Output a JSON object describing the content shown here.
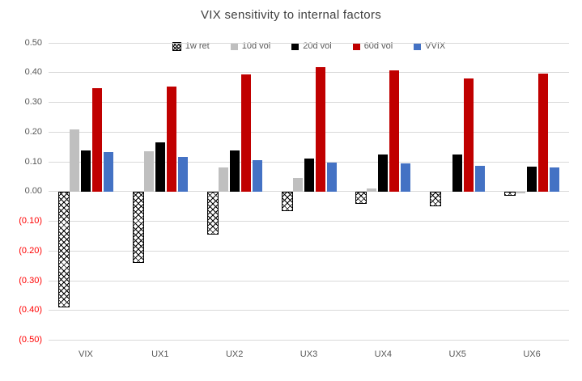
{
  "title": "VIX sensitivity to internal factors",
  "colors": {
    "grid": "#d9d9d9",
    "axis_text": "#595959",
    "negative_axis_text": "#ff0000",
    "title_text": "#404040",
    "series_1w_ret": "#000000",
    "series_10d_vol": "#bfbfbf",
    "series_20d_vol": "#000000",
    "series_60d_vol": "#c00000",
    "series_vvix": "#4472c4"
  },
  "chart_data": {
    "type": "bar",
    "title": "VIX sensitivity to internal factors",
    "xlabel": "",
    "ylabel": "",
    "categories": [
      "VIX",
      "UX1",
      "UX2",
      "UX3",
      "UX4",
      "UX5",
      "UX6"
    ],
    "series": [
      {
        "name": "1w ret",
        "style": "crosshatch",
        "color": "#000000",
        "values": [
          -0.385,
          -0.235,
          -0.14,
          -0.06,
          -0.035,
          -0.045,
          -0.01
        ]
      },
      {
        "name": "10d vol",
        "style": "solid",
        "color": "#bfbfbf",
        "values": [
          0.21,
          0.135,
          0.08,
          0.045,
          0.01,
          0.0,
          -0.005
        ]
      },
      {
        "name": "20d vol",
        "style": "solid",
        "color": "#000000",
        "values": [
          0.138,
          0.165,
          0.137,
          0.11,
          0.125,
          0.124,
          0.083
        ]
      },
      {
        "name": "60d vol",
        "style": "solid",
        "color": "#c00000",
        "values": [
          0.347,
          0.352,
          0.395,
          0.418,
          0.407,
          0.38,
          0.396
        ]
      },
      {
        "name": "VVIX",
        "style": "solid",
        "color": "#4472c4",
        "values": [
          0.133,
          0.116,
          0.106,
          0.097,
          0.095,
          0.086,
          0.081
        ]
      }
    ],
    "ylim": [
      -0.5,
      0.5
    ],
    "ytick_step": 0.1,
    "ytick_labels": [
      "0.50",
      "0.40",
      "0.30",
      "0.20",
      "0.10",
      "0.00",
      "(0.10)",
      "(0.20)",
      "(0.30)",
      "(0.40)",
      "(0.50)"
    ],
    "grid": true,
    "legend_position": "top"
  }
}
